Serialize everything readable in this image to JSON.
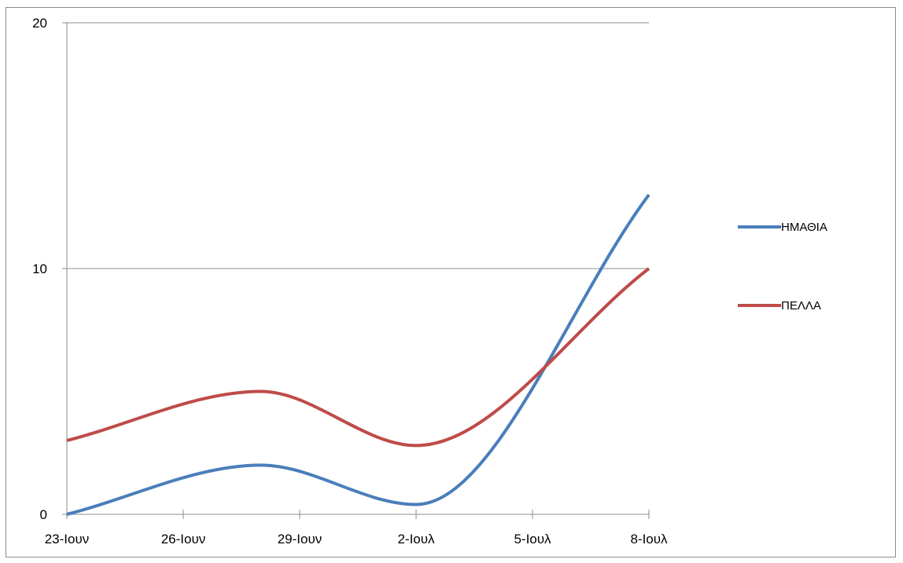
{
  "chart_data": {
    "type": "line",
    "smooth": true,
    "title": "",
    "xlabel": "",
    "ylabel": "",
    "categories": [
      "23-Ιουν",
      "26-Ιουν",
      "29-Ιουν",
      "2-Ιουλ",
      "5-Ιουλ",
      "8-Ιουλ"
    ],
    "x": [
      "23-Ιουν",
      "28-Ιουν",
      "2-Ιουλ",
      "8-Ιουλ"
    ],
    "ylim": [
      0,
      20
    ],
    "yticks": [
      0,
      10,
      20
    ],
    "grid": "horizontal",
    "legend_position": "right",
    "series": [
      {
        "name": "ΗΜΑΘΙΑ",
        "color": "#4a7ebb",
        "values": [
          0,
          2,
          0.4,
          13
        ]
      },
      {
        "name": "ΠΕΛΛΑ",
        "color": "#be4b48",
        "values": [
          3,
          5,
          2.8,
          10
        ]
      }
    ]
  }
}
